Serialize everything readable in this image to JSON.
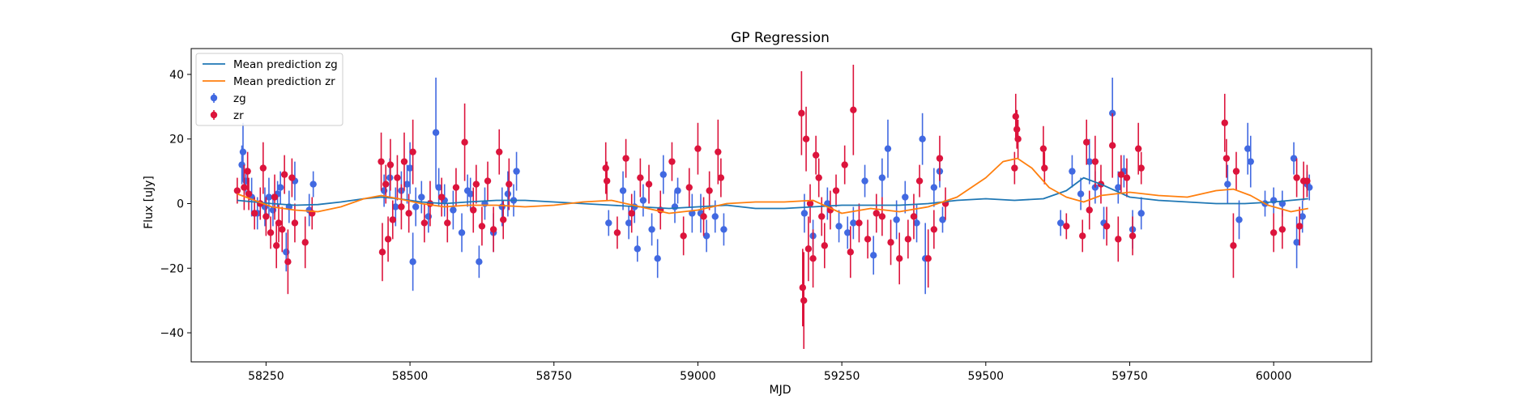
{
  "chart_data": {
    "type": "scatter",
    "title": "GP Regression",
    "xlabel": "MJD",
    "ylabel": "Flux [uJy]",
    "xlim": [
      58120,
      60170
    ],
    "ylim": [
      -49,
      48
    ],
    "xticks": [
      58250,
      58500,
      58750,
      59000,
      59250,
      59500,
      59750,
      60000
    ],
    "yticks": [
      -40,
      -20,
      0,
      20,
      40
    ],
    "grid": false,
    "legend_position": "upper-left",
    "legend": [
      "Mean prediction zg",
      "Mean prediction zr",
      "zg",
      "zr"
    ],
    "colors": {
      "zg_line": "#1f77b4",
      "zr_line": "#ff7f0e",
      "zg_points": "#4169e1",
      "zr_points": "#dc143c"
    },
    "series": [
      {
        "name": "Mean prediction zg",
        "kind": "line",
        "x": [
          58200,
          58230,
          58260,
          58300,
          58340,
          58380,
          58420,
          58450,
          58480,
          58520,
          58560,
          58600,
          58650,
          58700,
          58750,
          58800,
          58850,
          58900,
          58950,
          59000,
          59050,
          59100,
          59150,
          59200,
          59250,
          59300,
          59350,
          59400,
          59450,
          59500,
          59550,
          59600,
          59640,
          59670,
          59700,
          59750,
          59800,
          59850,
          59900,
          59950,
          60000,
          60030,
          60060
        ],
        "y": [
          1.0,
          0.5,
          0.0,
          -0.5,
          -0.3,
          0.5,
          1.5,
          2.0,
          1.5,
          0.5,
          0.0,
          0.5,
          1.0,
          1.0,
          0.5,
          0.0,
          -0.5,
          -1.0,
          -1.5,
          -1.0,
          -0.5,
          -1.5,
          -1.5,
          -1.0,
          -0.5,
          -0.5,
          -0.5,
          0.0,
          1.0,
          1.5,
          1.0,
          1.5,
          4.0,
          8.0,
          6.0,
          2.0,
          1.0,
          0.5,
          0.0,
          0.0,
          0.5,
          1.0,
          1.5
        ]
      },
      {
        "name": "Mean prediction zr",
        "kind": "line",
        "x": [
          58200,
          58230,
          58260,
          58300,
          58340,
          58380,
          58420,
          58450,
          58480,
          58520,
          58560,
          58600,
          58650,
          58700,
          58750,
          58800,
          58850,
          58900,
          58950,
          59000,
          59050,
          59100,
          59150,
          59200,
          59250,
          59300,
          59350,
          59400,
          59450,
          59500,
          59530,
          59555,
          59580,
          59610,
          59640,
          59670,
          59700,
          59750,
          59800,
          59850,
          59900,
          59930,
          59960,
          59990,
          60030,
          60060
        ],
        "y": [
          3.0,
          1.0,
          -1.0,
          -2.0,
          -2.5,
          -1.0,
          1.5,
          2.5,
          1.5,
          0.0,
          -1.0,
          -0.5,
          -0.5,
          -1.0,
          -0.5,
          0.5,
          1.0,
          -1.0,
          -3.0,
          -2.0,
          0.0,
          0.5,
          0.5,
          1.0,
          -3.0,
          -1.5,
          -2.5,
          -1.0,
          2.0,
          8.0,
          13.0,
          14.0,
          11.0,
          5.0,
          2.0,
          0.5,
          2.5,
          3.5,
          2.5,
          2.0,
          4.0,
          4.5,
          2.5,
          -0.5,
          -2.5,
          -1.5
        ]
      },
      {
        "name": "zg",
        "kind": "errorbar",
        "points": [
          [
            58208,
            12,
            6
          ],
          [
            58210,
            16,
            9
          ],
          [
            58215,
            7,
            4
          ],
          [
            58225,
            2,
            6
          ],
          [
            58235,
            -3,
            5
          ],
          [
            58248,
            -1,
            6
          ],
          [
            58255,
            2,
            6
          ],
          [
            58262,
            -2,
            5
          ],
          [
            58270,
            3,
            4
          ],
          [
            58275,
            5,
            5
          ],
          [
            58285,
            -15,
            6
          ],
          [
            58290,
            -1,
            5
          ],
          [
            58300,
            7,
            6
          ],
          [
            58325,
            -2,
            5
          ],
          [
            58332,
            6,
            4
          ],
          [
            58455,
            4,
            5
          ],
          [
            58465,
            8,
            6
          ],
          [
            58475,
            -1,
            6
          ],
          [
            58485,
            4,
            6
          ],
          [
            58495,
            6,
            6
          ],
          [
            58500,
            11,
            8
          ],
          [
            58505,
            -18,
            9
          ],
          [
            58510,
            -1,
            6
          ],
          [
            58520,
            2,
            5
          ],
          [
            58532,
            -4,
            5
          ],
          [
            58545,
            22,
            17
          ],
          [
            58550,
            5,
            6
          ],
          [
            58560,
            1,
            5
          ],
          [
            58575,
            -2,
            6
          ],
          [
            58590,
            -9,
            6
          ],
          [
            58600,
            4,
            5
          ],
          [
            58605,
            3,
            5
          ],
          [
            58620,
            -18,
            5
          ],
          [
            58630,
            0,
            5
          ],
          [
            58645,
            -9,
            6
          ],
          [
            58660,
            -1,
            6
          ],
          [
            58670,
            3,
            7
          ],
          [
            58680,
            1,
            5
          ],
          [
            58685,
            10,
            6
          ],
          [
            58845,
            -6,
            4
          ],
          [
            58870,
            4,
            6
          ],
          [
            58880,
            -6,
            5
          ],
          [
            58890,
            -1,
            5
          ],
          [
            58895,
            -14,
            4
          ],
          [
            58905,
            1,
            5
          ],
          [
            58920,
            -8,
            5
          ],
          [
            58930,
            -17,
            6
          ],
          [
            58940,
            9,
            6
          ],
          [
            58960,
            -1,
            5
          ],
          [
            58965,
            4,
            4
          ],
          [
            58990,
            -3,
            6
          ],
          [
            59005,
            -3,
            6
          ],
          [
            59015,
            -10,
            5
          ],
          [
            59030,
            -4,
            5
          ],
          [
            59045,
            -8,
            5
          ],
          [
            59185,
            -3,
            6
          ],
          [
            59200,
            -10,
            5
          ],
          [
            59225,
            0,
            5
          ],
          [
            59245,
            -7,
            5
          ],
          [
            59260,
            -9,
            5
          ],
          [
            59270,
            -6,
            5
          ],
          [
            59290,
            7,
            5
          ],
          [
            59305,
            -16,
            6
          ],
          [
            59320,
            8,
            6
          ],
          [
            59330,
            17,
            9
          ],
          [
            59345,
            -5,
            6
          ],
          [
            59360,
            2,
            5
          ],
          [
            59380,
            -6,
            6
          ],
          [
            59390,
            20,
            8
          ],
          [
            59395,
            -17,
            11
          ],
          [
            59410,
            5,
            6
          ],
          [
            59420,
            10,
            5
          ],
          [
            59425,
            -5,
            4
          ],
          [
            59630,
            -6,
            4
          ],
          [
            59650,
            10,
            5
          ],
          [
            59665,
            3,
            5
          ],
          [
            59680,
            13,
            7
          ],
          [
            59690,
            5,
            5
          ],
          [
            59705,
            -6,
            5
          ],
          [
            59720,
            28,
            11
          ],
          [
            59730,
            5,
            5
          ],
          [
            59740,
            10,
            5
          ],
          [
            59755,
            -8,
            6
          ],
          [
            59770,
            -3,
            5
          ],
          [
            59920,
            6,
            6
          ],
          [
            59940,
            -5,
            6
          ],
          [
            59955,
            17,
            8
          ],
          [
            59960,
            13,
            8
          ],
          [
            59985,
            0,
            4
          ],
          [
            60000,
            1,
            4
          ],
          [
            60015,
            0,
            4
          ],
          [
            60035,
            14,
            5
          ],
          [
            60040,
            -12,
            8
          ],
          [
            60050,
            -4,
            5
          ],
          [
            60058,
            6,
            4
          ],
          [
            60062,
            5,
            4
          ]
        ]
      },
      {
        "name": "zr",
        "kind": "errorbar",
        "points": [
          [
            58200,
            4,
            4
          ],
          [
            58212,
            5,
            7
          ],
          [
            58218,
            10,
            6
          ],
          [
            58220,
            3,
            5
          ],
          [
            58230,
            -3,
            5
          ],
          [
            58240,
            0,
            5
          ],
          [
            58245,
            11,
            8
          ],
          [
            58250,
            -4,
            6
          ],
          [
            58258,
            -9,
            5
          ],
          [
            58265,
            2,
            7
          ],
          [
            58268,
            -13,
            7
          ],
          [
            58272,
            -6,
            6
          ],
          [
            58278,
            -8,
            7
          ],
          [
            58282,
            9,
            6
          ],
          [
            58288,
            -18,
            10
          ],
          [
            58295,
            8,
            6
          ],
          [
            58300,
            -6,
            6
          ],
          [
            58318,
            -12,
            8
          ],
          [
            58330,
            -3,
            5
          ],
          [
            58450,
            13,
            9
          ],
          [
            58452,
            -15,
            9
          ],
          [
            58458,
            6,
            6
          ],
          [
            58462,
            -11,
            7
          ],
          [
            58466,
            12,
            8
          ],
          [
            58470,
            -5,
            6
          ],
          [
            58478,
            8,
            7
          ],
          [
            58485,
            -1,
            7
          ],
          [
            58490,
            13,
            9
          ],
          [
            58498,
            -3,
            6
          ],
          [
            58505,
            16,
            10
          ],
          [
            58525,
            -6,
            6
          ],
          [
            58535,
            0,
            7
          ],
          [
            58555,
            2,
            6
          ],
          [
            58565,
            -6,
            6
          ],
          [
            58580,
            5,
            6
          ],
          [
            58595,
            19,
            12
          ],
          [
            58610,
            -2,
            7
          ],
          [
            58615,
            6,
            6
          ],
          [
            58625,
            -7,
            6
          ],
          [
            58635,
            7,
            6
          ],
          [
            58645,
            -8,
            7
          ],
          [
            58655,
            16,
            7
          ],
          [
            58662,
            -5,
            6
          ],
          [
            58672,
            6,
            8
          ],
          [
            58840,
            11,
            8
          ],
          [
            58842,
            7,
            6
          ],
          [
            58860,
            -9,
            5
          ],
          [
            58875,
            14,
            6
          ],
          [
            58885,
            -3,
            6
          ],
          [
            58900,
            8,
            6
          ],
          [
            58915,
            6,
            6
          ],
          [
            58935,
            -2,
            6
          ],
          [
            58955,
            13,
            6
          ],
          [
            58975,
            -10,
            6
          ],
          [
            58985,
            5,
            6
          ],
          [
            59000,
            17,
            8
          ],
          [
            59010,
            -4,
            6
          ],
          [
            59020,
            4,
            6
          ],
          [
            59035,
            16,
            10
          ],
          [
            59040,
            8,
            6
          ],
          [
            59180,
            28,
            13
          ],
          [
            59182,
            -26,
            12
          ],
          [
            59184,
            -30,
            15
          ],
          [
            59188,
            20,
            10
          ],
          [
            59192,
            -14,
            10
          ],
          [
            59195,
            0,
            6
          ],
          [
            59200,
            -17,
            9
          ],
          [
            59205,
            15,
            6
          ],
          [
            59210,
            8,
            6
          ],
          [
            59215,
            -4,
            6
          ],
          [
            59220,
            -13,
            7
          ],
          [
            59230,
            -2,
            6
          ],
          [
            59240,
            4,
            5
          ],
          [
            59255,
            12,
            6
          ],
          [
            59265,
            -15,
            8
          ],
          [
            59270,
            29,
            14
          ],
          [
            59280,
            -6,
            6
          ],
          [
            59295,
            -11,
            6
          ],
          [
            59310,
            -3,
            6
          ],
          [
            59320,
            -4,
            6
          ],
          [
            59335,
            -12,
            7
          ],
          [
            59350,
            -17,
            8
          ],
          [
            59365,
            -11,
            6
          ],
          [
            59375,
            -4,
            7
          ],
          [
            59385,
            7,
            5
          ],
          [
            59400,
            -17,
            9
          ],
          [
            59410,
            -8,
            6
          ],
          [
            59420,
            14,
            7
          ],
          [
            59430,
            0,
            5
          ],
          [
            59550,
            11,
            5
          ],
          [
            59552,
            27,
            7
          ],
          [
            59554,
            23,
            6
          ],
          [
            59556,
            20,
            6
          ],
          [
            59600,
            17,
            7
          ],
          [
            59602,
            11,
            5
          ],
          [
            59640,
            -7,
            4
          ],
          [
            59668,
            -10,
            5
          ],
          [
            59675,
            19,
            7
          ],
          [
            59680,
            -2,
            6
          ],
          [
            59690,
            13,
            8
          ],
          [
            59700,
            6,
            6
          ],
          [
            59710,
            -7,
            6
          ],
          [
            59720,
            18,
            10
          ],
          [
            59730,
            -11,
            7
          ],
          [
            59735,
            9,
            6
          ],
          [
            59745,
            8,
            6
          ],
          [
            59755,
            -10,
            6
          ],
          [
            59765,
            17,
            8
          ],
          [
            59770,
            11,
            5
          ],
          [
            59915,
            25,
            9
          ],
          [
            59918,
            14,
            6
          ],
          [
            59930,
            -13,
            10
          ],
          [
            59935,
            10,
            6
          ],
          [
            60000,
            -9,
            6
          ],
          [
            60015,
            -8,
            6
          ],
          [
            60040,
            8,
            6
          ],
          [
            60045,
            -7,
            6
          ],
          [
            60052,
            7,
            6
          ],
          [
            60058,
            7,
            5
          ]
        ]
      }
    ]
  }
}
